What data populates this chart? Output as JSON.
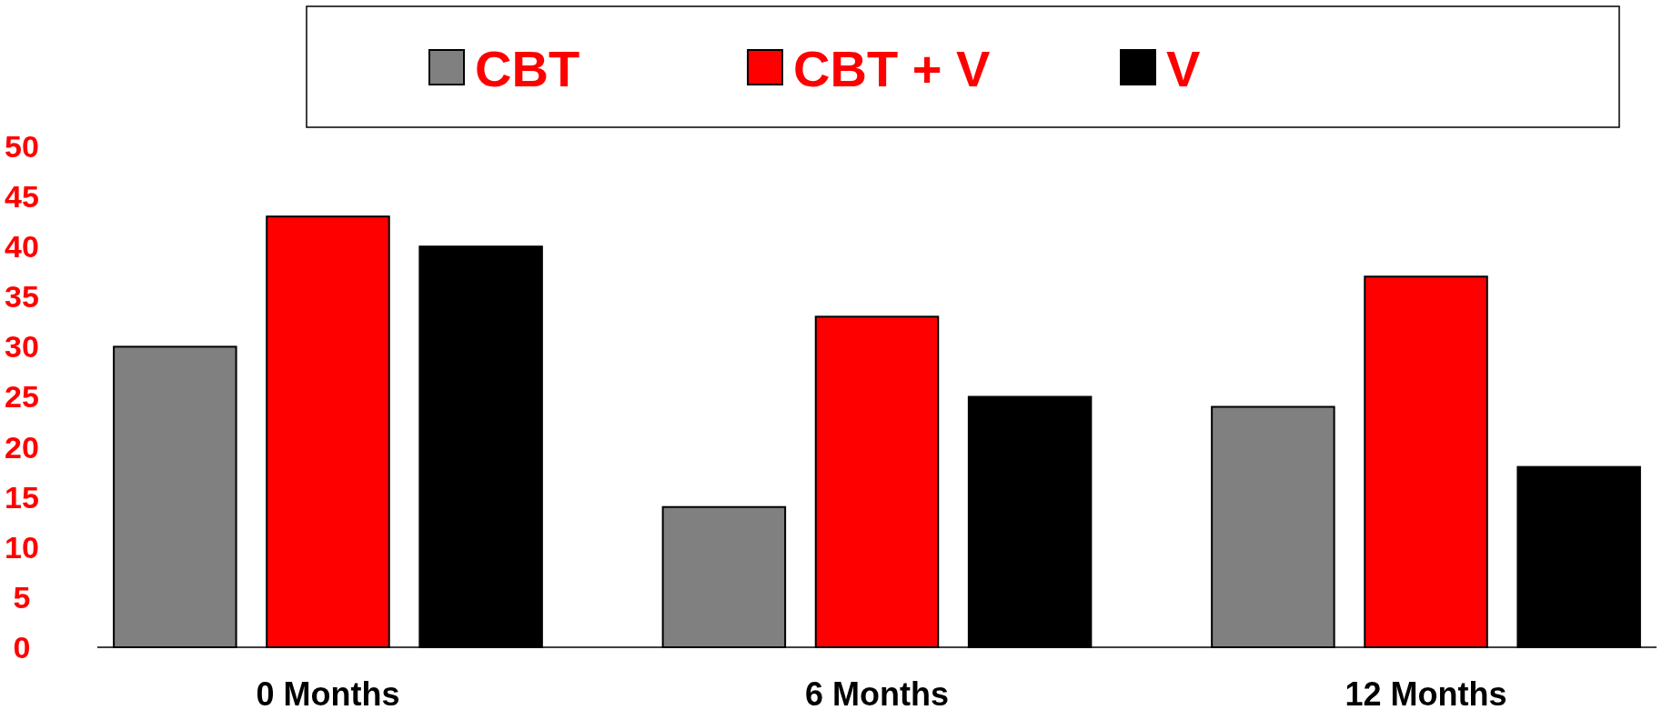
{
  "chart_data": {
    "type": "bar",
    "categories": [
      "0 Months",
      "6 Months",
      "12 Months"
    ],
    "series": [
      {
        "name": "CBT",
        "color": "#808080",
        "values": [
          30,
          14,
          24
        ]
      },
      {
        "name": "CBT + V",
        "color": "#ff0000",
        "values": [
          43,
          33,
          37
        ]
      },
      {
        "name": "V",
        "color": "#000000",
        "values": [
          40,
          25,
          18
        ]
      }
    ],
    "ylim": [
      0,
      50
    ],
    "yticks": [
      0,
      5,
      10,
      15,
      20,
      25,
      30,
      35,
      40,
      45,
      50
    ],
    "grid": false,
    "legend": "top"
  }
}
